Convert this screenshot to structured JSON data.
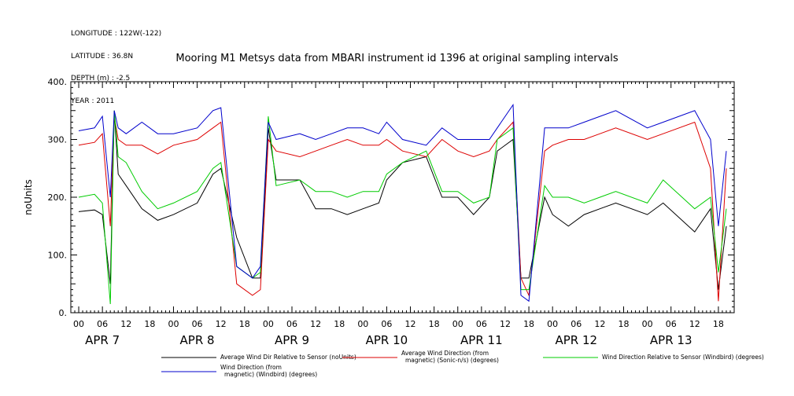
{
  "header": {
    "meta_lines": [
      "LONGITUDE : 122W(-122)",
      "LATITUDE : 36.8N",
      "DEPTH (m) : -2.5",
      "YEAR : 2011"
    ],
    "title": "Mooring M1 Metsys data from MBARI instrument id 1396 at original sampling intervals"
  },
  "chart_data": {
    "type": "line",
    "title": "Mooring M1 Metsys data from MBARI instrument id 1396 at original sampling intervals",
    "xlabel": "",
    "ylabel": "noUnits",
    "ylim": [
      0,
      400
    ],
    "xlim_hours": [
      -2,
      166
    ],
    "y_ticks": [
      "0.",
      "100.",
      "200.",
      "300.",
      "400."
    ],
    "hour_tick_labels": [
      "00",
      "06",
      "12",
      "18"
    ],
    "day_labels": [
      "APR  7",
      "APR  8",
      "APR  9",
      "APR  10",
      "APR  11",
      "APR  12",
      "APR  13"
    ],
    "grid": false,
    "legend_placement": "bottom",
    "series": [
      {
        "name": "Average Wind Dir Relative to Sensor (noUnits)",
        "color": "#000000",
        "x": [
          0,
          4,
          6,
          8,
          9,
          10,
          12,
          16,
          20,
          24,
          30,
          34,
          36,
          40,
          44,
          46,
          48,
          50,
          56,
          60,
          64,
          68,
          72,
          76,
          78,
          82,
          88,
          92,
          96,
          100,
          104,
          106,
          110,
          112,
          114,
          118,
          120,
          124,
          128,
          132,
          136,
          144,
          148,
          156,
          160,
          162,
          164
        ],
        "y": [
          175,
          178,
          170,
          50,
          350,
          240,
          220,
          180,
          160,
          170,
          190,
          240,
          250,
          130,
          60,
          60,
          320,
          230,
          230,
          180,
          180,
          170,
          180,
          190,
          230,
          260,
          270,
          200,
          200,
          170,
          200,
          280,
          300,
          60,
          60,
          200,
          170,
          150,
          170,
          180,
          190,
          170,
          190,
          140,
          180,
          40,
          150
        ]
      },
      {
        "name": "Average Wind Direction (from, magnetic) (Sonic-n/s) (degrees)",
        "color": "#dd0000",
        "x": [
          0,
          4,
          6,
          8,
          9,
          10,
          12,
          16,
          20,
          24,
          30,
          34,
          36,
          40,
          44,
          46,
          48,
          50,
          56,
          60,
          64,
          68,
          72,
          76,
          78,
          82,
          88,
          92,
          96,
          100,
          104,
          106,
          110,
          112,
          114,
          118,
          120,
          124,
          128,
          132,
          136,
          144,
          148,
          156,
          160,
          162,
          164
        ],
        "y": [
          290,
          295,
          310,
          150,
          340,
          300,
          290,
          290,
          275,
          290,
          300,
          320,
          330,
          50,
          30,
          40,
          300,
          280,
          270,
          280,
          290,
          300,
          290,
          290,
          300,
          280,
          270,
          300,
          280,
          270,
          280,
          300,
          330,
          60,
          30,
          280,
          290,
          300,
          300,
          310,
          320,
          300,
          310,
          330,
          250,
          20,
          250
        ]
      },
      {
        "name": "Wind Direction Relative to Sensor (Windbird) (degrees)",
        "color": "#00cc00",
        "x": [
          0,
          4,
          6,
          8,
          9,
          10,
          12,
          16,
          20,
          24,
          30,
          34,
          36,
          40,
          44,
          46,
          48,
          50,
          56,
          60,
          64,
          68,
          72,
          76,
          78,
          82,
          88,
          92,
          96,
          100,
          104,
          106,
          110,
          112,
          114,
          118,
          120,
          124,
          128,
          132,
          136,
          144,
          148,
          156,
          160,
          162,
          164
        ],
        "y": [
          200,
          205,
          190,
          15,
          350,
          270,
          260,
          210,
          180,
          190,
          210,
          250,
          260,
          80,
          60,
          70,
          340,
          220,
          230,
          210,
          210,
          200,
          210,
          210,
          240,
          260,
          280,
          210,
          210,
          190,
          200,
          300,
          320,
          40,
          40,
          220,
          200,
          200,
          190,
          200,
          210,
          190,
          230,
          180,
          200,
          70,
          180
        ]
      },
      {
        "name": "Wind Direction (from, magnetic) (Windbird) (degrees)",
        "color": "#0000cc",
        "x": [
          0,
          4,
          6,
          8,
          9,
          10,
          12,
          16,
          20,
          24,
          30,
          34,
          36,
          40,
          44,
          46,
          48,
          50,
          56,
          60,
          64,
          68,
          72,
          76,
          78,
          82,
          88,
          92,
          96,
          100,
          104,
          106,
          110,
          112,
          114,
          118,
          120,
          124,
          128,
          132,
          136,
          144,
          148,
          156,
          160,
          162,
          164
        ],
        "y": [
          315,
          320,
          340,
          200,
          350,
          320,
          310,
          330,
          310,
          310,
          320,
          350,
          355,
          80,
          60,
          80,
          330,
          300,
          310,
          300,
          310,
          320,
          320,
          310,
          330,
          300,
          290,
          320,
          300,
          300,
          300,
          320,
          360,
          30,
          20,
          320,
          320,
          320,
          330,
          340,
          350,
          320,
          330,
          350,
          300,
          150,
          280
        ]
      }
    ]
  }
}
